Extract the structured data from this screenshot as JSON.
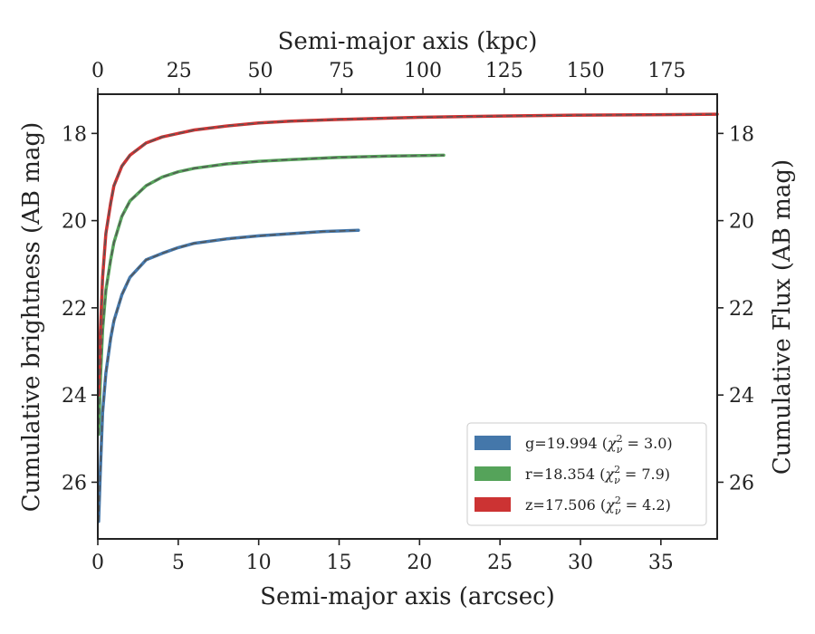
{
  "chart_data": {
    "type": "line",
    "title": "",
    "xlabel": "Semi-major axis (arcsec)",
    "x2label": "Semi-major axis (kpc)",
    "ylabel": "Cumulative brightness (AB mag)",
    "y2label": "Cumulative Flux (AB mag)",
    "xlim": [
      0,
      38.5
    ],
    "x2lim": [
      0,
      190.5
    ],
    "ylim": [
      27.3,
      17.1
    ],
    "y_inverted": true,
    "xticks": [
      0,
      5,
      10,
      15,
      20,
      25,
      30,
      35
    ],
    "x2ticks": [
      0,
      25,
      50,
      75,
      100,
      125,
      150,
      175
    ],
    "yticks": [
      18,
      20,
      22,
      24,
      26
    ],
    "grid": false,
    "legend_position": "lower-right",
    "series": [
      {
        "name": "g=19.994 (χ²ν = 3.0)",
        "legend_prefix": "g=19.994 (",
        "legend_chi": "χ",
        "legend_sup": "2",
        "legend_sub": "ν",
        "legend_suffix": " = 3.0)",
        "color": "#4477aa",
        "x": [
          0.05,
          0.15,
          0.3,
          0.5,
          0.8,
          1.0,
          1.5,
          2.0,
          3.0,
          4.0,
          5.0,
          6.0,
          8.0,
          10.0,
          12.0,
          14.0,
          16.2
        ],
        "y": [
          26.9,
          25.8,
          24.4,
          23.5,
          22.7,
          22.3,
          21.7,
          21.3,
          20.9,
          20.75,
          20.62,
          20.52,
          20.42,
          20.35,
          20.3,
          20.25,
          20.22
        ]
      },
      {
        "name": "r=18.354 (χ²ν = 7.9)",
        "legend_prefix": "r=18.354 (",
        "legend_chi": "χ",
        "legend_sup": "2",
        "legend_sub": "ν",
        "legend_suffix": " = 7.9)",
        "color": "#55a35a",
        "x": [
          0.05,
          0.15,
          0.3,
          0.5,
          0.8,
          1.0,
          1.5,
          2.0,
          3.0,
          4.0,
          5.0,
          6.0,
          8.0,
          10.0,
          12.0,
          15.0,
          18.0,
          21.5
        ],
        "y": [
          24.9,
          23.7,
          22.5,
          21.6,
          20.9,
          20.5,
          19.9,
          19.55,
          19.2,
          19.0,
          18.88,
          18.8,
          18.7,
          18.64,
          18.6,
          18.55,
          18.52,
          18.5
        ]
      },
      {
        "name": "z=17.506 (χ²ν = 4.2)",
        "legend_prefix": "z=17.506 (",
        "legend_chi": "χ",
        "legend_sup": "2",
        "legend_sub": "ν",
        "legend_suffix": " = 4.2)",
        "color": "#cc3333",
        "x": [
          0.05,
          0.15,
          0.3,
          0.5,
          0.8,
          1.0,
          1.5,
          2.0,
          3.0,
          4.0,
          5.0,
          6.0,
          8.0,
          10.0,
          12.0,
          15.0,
          20.0,
          25.0,
          30.0,
          35.0,
          38.5
        ],
        "y": [
          24.0,
          22.6,
          21.3,
          20.3,
          19.6,
          19.2,
          18.75,
          18.5,
          18.22,
          18.08,
          18.0,
          17.92,
          17.83,
          17.76,
          17.72,
          17.68,
          17.63,
          17.6,
          17.58,
          17.57,
          17.56
        ]
      }
    ],
    "fit_line_color": "#555555"
  }
}
